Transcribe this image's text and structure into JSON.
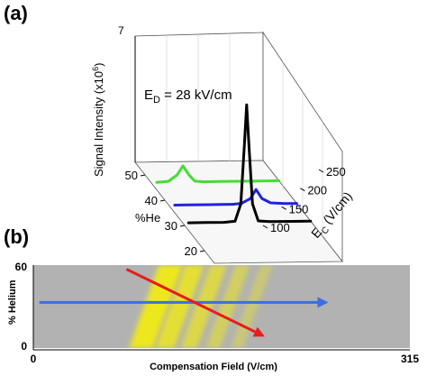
{
  "figure": {
    "panel_a_label": "(a)",
    "panel_b_label": "(b)"
  },
  "chart_data": [
    {
      "type": "line",
      "panel": "(a)",
      "view": "3D",
      "annotation_base": "E",
      "annotation_sub": "D",
      "annotation_rest": " = 28 kV/cm",
      "zlabel_text": "Signal Intensity (x10",
      "zlabel_sup": "6",
      "zlabel_end": ")",
      "zmax_label": "7",
      "zlim": [
        0,
        7
      ],
      "xlabel": "%He",
      "ylabel_base": "E",
      "ylabel_sub": "C",
      "ylabel_rest": " (V/cm)",
      "he_ticks": [
        "50",
        "40",
        "30",
        "20"
      ],
      "ec_ticks": [
        "100",
        "150",
        "200",
        "250"
      ],
      "he_range": [
        15,
        55
      ],
      "ec_range": [
        50,
        270
      ],
      "series": [
        {
          "color": "#2222dd",
          "he": 38,
          "ec": [
            60,
            80,
            100,
            120,
            140,
            160,
            175,
            190,
            200,
            210,
            225,
            250,
            270
          ],
          "values": [
            0.0,
            0.0,
            0.0,
            0.0,
            0.0,
            0.0,
            0.05,
            0.3,
            0.8,
            0.3,
            0.05,
            0.0,
            0.0
          ]
        },
        {
          "color": "#44dd33",
          "he": 47,
          "ec": [
            60,
            80,
            95,
            105,
            115,
            125,
            140,
            170,
            200,
            240,
            270
          ],
          "values": [
            0.0,
            0.05,
            0.4,
            0.9,
            0.4,
            0.05,
            0.0,
            0.0,
            0.0,
            0.0,
            0.0
          ]
        },
        {
          "color": "#000000",
          "he": 31,
          "ec": [
            60,
            90,
            120,
            140,
            150,
            156,
            160,
            164,
            170,
            180,
            200,
            240,
            270
          ],
          "values": [
            0.0,
            0.0,
            0.0,
            0.05,
            1.0,
            4.2,
            6.5,
            4.2,
            1.0,
            0.05,
            0.0,
            0.0,
            0.0
          ]
        }
      ]
    },
    {
      "type": "heatmap",
      "panel": "(b)",
      "xlabel": "Compensation Field (V/cm)",
      "ylabel": "% Helium",
      "xlim": [
        0,
        315
      ],
      "ylim": [
        0,
        60
      ],
      "xtick_labels": [
        "0",
        "315"
      ],
      "ytick_labels": [
        "0",
        "60"
      ],
      "background_color": "#b2b2b2",
      "band_color": "#f4ee10",
      "bands": [
        {
          "x_at_top": 115,
          "x_at_bottom": 90,
          "width": 20,
          "intensity": 1.0
        },
        {
          "x_at_top": 135,
          "x_at_bottom": 110,
          "width": 16,
          "intensity": 0.85
        },
        {
          "x_at_top": 155,
          "x_at_bottom": 130,
          "width": 14,
          "intensity": 0.7
        },
        {
          "x_at_top": 175,
          "x_at_bottom": 150,
          "width": 12,
          "intensity": 0.55
        },
        {
          "x_at_top": 195,
          "x_at_bottom": 170,
          "width": 10,
          "intensity": 0.4
        }
      ],
      "arrows": [
        {
          "color": "#3b6fe0",
          "from": [
            5,
            33
          ],
          "to": [
            245,
            33
          ]
        },
        {
          "color": "#e81c1c",
          "from": [
            78,
            57
          ],
          "to": [
            192,
            9
          ]
        }
      ]
    }
  ]
}
